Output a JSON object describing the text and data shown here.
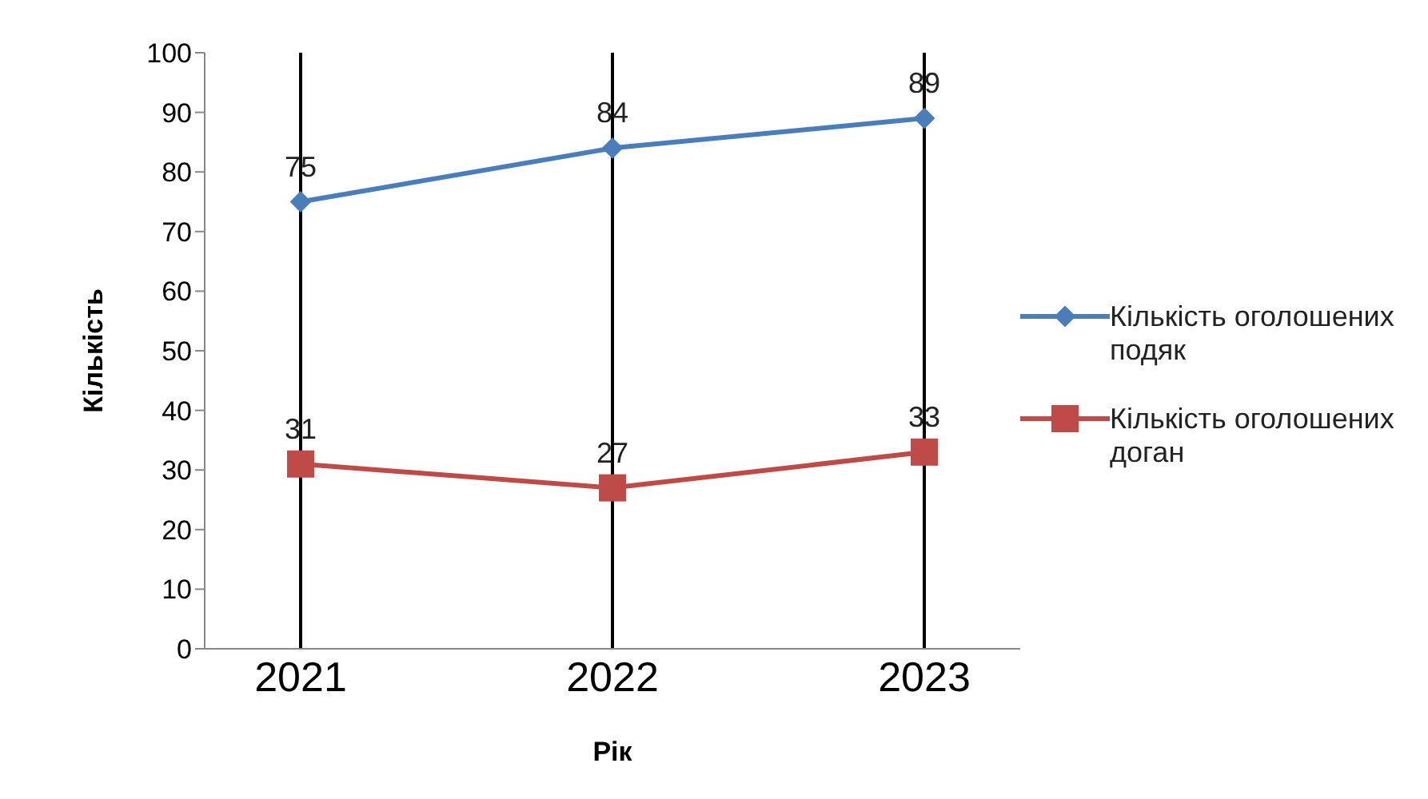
{
  "chart_data": {
    "type": "line",
    "xlabel": "Рік",
    "ylabel": "Кількість",
    "categories": [
      "2021",
      "2022",
      "2023"
    ],
    "series": [
      {
        "name": "Кількість оголошених подяк",
        "color": "#4a7ebb",
        "marker": "diamond",
        "values": [
          75,
          84,
          89
        ]
      },
      {
        "name": "Кількість оголошених доган",
        "color": "#be4b48",
        "marker": "square",
        "values": [
          31,
          27,
          33
        ]
      }
    ],
    "ylim": [
      0,
      100
    ],
    "yticks": [
      0,
      10,
      20,
      30,
      40,
      50,
      60,
      70,
      80,
      90,
      100
    ],
    "grid": "x",
    "legend": "right",
    "data_labels": true
  }
}
